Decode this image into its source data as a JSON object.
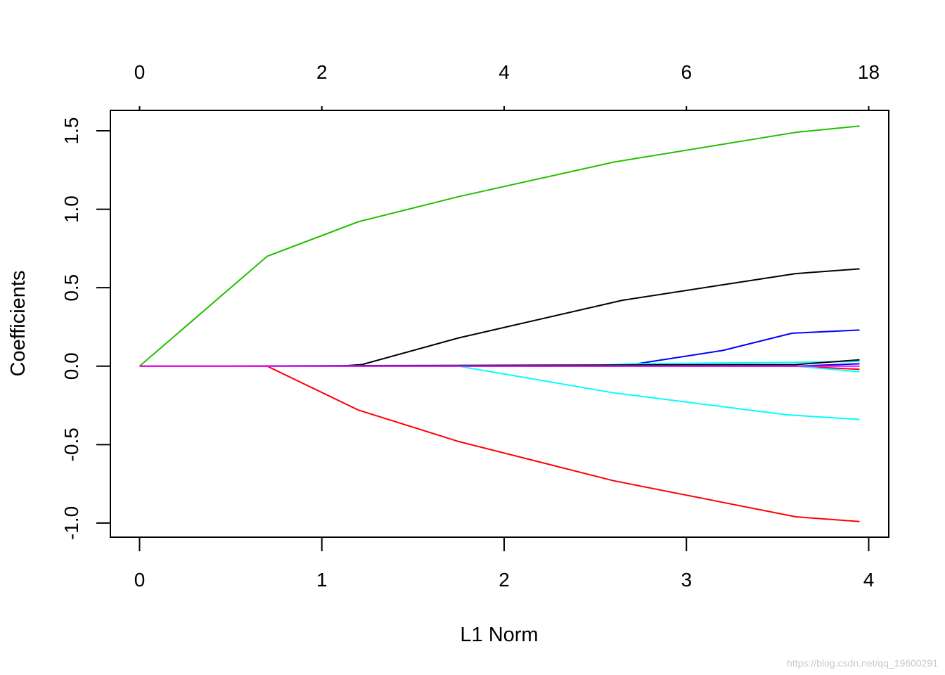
{
  "chart_data": {
    "type": "line",
    "title": "",
    "xlabel": "L1 Norm",
    "ylabel": "Coefficients",
    "xlim": [
      -0.16,
      4.11
    ],
    "ylim": [
      -1.09,
      1.63
    ],
    "x_ticks": [
      "0",
      "1",
      "2",
      "3",
      "4"
    ],
    "x_tick_values": [
      0,
      1,
      2,
      3,
      4
    ],
    "y_ticks": [
      "-1.0",
      "-0.5",
      "0.0",
      "0.5",
      "1.0",
      "1.5"
    ],
    "y_tick_values": [
      -1.0,
      -0.5,
      0.0,
      0.5,
      1.0,
      1.5
    ],
    "top_axis": {
      "label": "",
      "ticks": [
        "0",
        "2",
        "4",
        "6",
        "18"
      ],
      "tick_positions": [
        0,
        1,
        2,
        3,
        4
      ]
    },
    "grid": false,
    "legend": "none",
    "series": [
      {
        "color": "#22c000",
        "x": [
          0,
          0.7,
          1.2,
          1.75,
          2.6,
          3.6,
          3.95
        ],
        "y": [
          0,
          0.7,
          0.92,
          1.08,
          1.3,
          1.49,
          1.53
        ]
      },
      {
        "color": "#000000",
        "x": [
          0,
          1.1,
          1.22,
          1.75,
          2.65,
          3.6,
          3.95
        ],
        "y": [
          0,
          0,
          0.01,
          0.18,
          0.42,
          0.59,
          0.62
        ]
      },
      {
        "color": "#0000ff",
        "x": [
          0,
          2.6,
          2.7,
          3.2,
          3.58,
          3.95
        ],
        "y": [
          0,
          0,
          0.01,
          0.1,
          0.21,
          0.23
        ]
      },
      {
        "color": "#00ffff",
        "x": [
          0,
          2.4,
          2.7,
          3.6,
          3.95
        ],
        "y": [
          0,
          0,
          0.015,
          0.025,
          0.03
        ]
      },
      {
        "color": "#000000",
        "x": [
          0,
          3.6,
          3.95
        ],
        "y": [
          0,
          0.01,
          0.04
        ]
      },
      {
        "color": "#ff0000",
        "x": [
          0,
          3.6,
          3.95
        ],
        "y": [
          0,
          0,
          -0.02
        ]
      },
      {
        "color": "#0000ff",
        "x": [
          0,
          3.6,
          3.95
        ],
        "y": [
          0,
          0,
          0.015
        ]
      },
      {
        "color": "#00ffff",
        "x": [
          0,
          3.6,
          3.95
        ],
        "y": [
          0,
          0,
          -0.035
        ]
      },
      {
        "color": "#00ffff",
        "x": [
          0,
          1.75,
          2.0,
          2.6,
          3.55,
          3.95
        ],
        "y": [
          0,
          0,
          -0.05,
          -0.17,
          -0.31,
          -0.34
        ]
      },
      {
        "color": "#ff0000",
        "x": [
          0,
          0.7,
          1.2,
          1.75,
          2.6,
          3.6,
          3.95
        ],
        "y": [
          0,
          0,
          -0.28,
          -0.48,
          -0.73,
          -0.96,
          -0.99
        ]
      },
      {
        "color": "#ff00ff",
        "x": [
          0,
          3.95
        ],
        "y": [
          0,
          0
        ]
      }
    ]
  },
  "watermark": "https://blog.csdn.net/qq_19600291"
}
